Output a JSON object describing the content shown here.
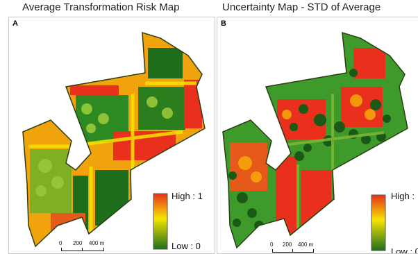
{
  "panels": [
    {
      "title": "Average Transformation Risk Map",
      "letter": "A",
      "legend_high": "High : 1",
      "legend_low": "Low : 0",
      "scale_labels": [
        "0",
        "200",
        "400 m"
      ]
    },
    {
      "title": "Uncertainty Map - STD of Average",
      "letter": "B",
      "legend_high": "High :",
      "legend_low": "Low : 0",
      "scale_labels": [
        "0",
        "200",
        "400 m"
      ]
    }
  ],
  "colors": {
    "high": "#e8301c",
    "mid": "#f5e400",
    "low": "#1f6e1c",
    "outline": "#2b3d12"
  }
}
